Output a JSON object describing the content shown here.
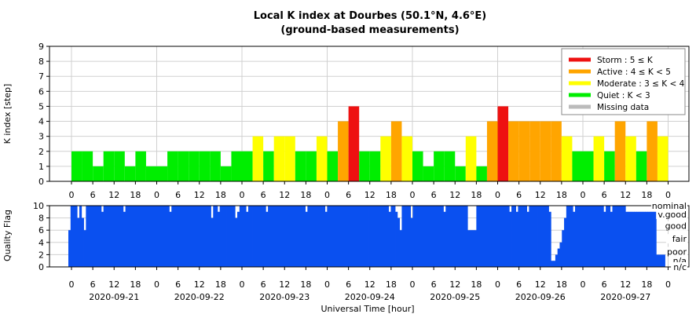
{
  "chart_data": [
    {
      "type": "bar",
      "title": "Local K index at Dourbes (50.1°N, 4.6°E)",
      "subtitle": "(ground-based measurements)",
      "ylabel": "K index [step]",
      "ylim": [
        0,
        9
      ],
      "yticks": [
        "0",
        "1",
        "2",
        "3",
        "4",
        "5",
        "6",
        "7",
        "8",
        "9"
      ],
      "x_unit": "3-hour interval (UT)",
      "x_tick_labels": [
        "0",
        "6",
        "12",
        "18",
        "0",
        "6",
        "12",
        "18",
        "0",
        "6",
        "12",
        "18",
        "0",
        "6",
        "12",
        "18",
        "0",
        "6",
        "12",
        "18",
        "0",
        "6",
        "12",
        "18",
        "0",
        "6",
        "12",
        "18",
        "0"
      ],
      "grid": true,
      "legend_position": "top-right",
      "legend": [
        {
          "label": "Storm : 5 ≤ K",
          "color": "#ee1111"
        },
        {
          "label": "Active : 4 ≤ K < 5",
          "color": "#ffa500"
        },
        {
          "label": "Moderate : 3 ≤ K < 4",
          "color": "#ffff00"
        },
        {
          "label": "Quiet : K < 3",
          "color": "#00ee00"
        },
        {
          "label": "Missing data",
          "color": "#bbbbbb"
        }
      ],
      "values": [
        2,
        2,
        1,
        2,
        2,
        1,
        2,
        1,
        1,
        2,
        2,
        2,
        2,
        2,
        1,
        2,
        2,
        3,
        2,
        3,
        3,
        2,
        2,
        3,
        2,
        4,
        5,
        2,
        2,
        3,
        4,
        3,
        2,
        1,
        2,
        2,
        1,
        3,
        1,
        4,
        5,
        4,
        4,
        4,
        4,
        4,
        3,
        2,
        2,
        3,
        2,
        4,
        3,
        2,
        4,
        3
      ]
    },
    {
      "type": "area",
      "ylabel": "Quality Flag",
      "ylim": [
        0,
        10
      ],
      "yticks": [
        "0",
        "2",
        "4",
        "6",
        "8",
        "10"
      ],
      "quality_labels": [
        "nominal",
        "v.good",
        "good",
        "fair",
        "poor",
        "n/a",
        "n/c"
      ],
      "x_tick_labels": [
        "0",
        "6",
        "12",
        "18",
        "0",
        "6",
        "12",
        "18",
        "0",
        "6",
        "12",
        "18",
        "0",
        "6",
        "12",
        "18",
        "0",
        "6",
        "12",
        "18",
        "0",
        "6",
        "12",
        "18",
        "0",
        "6",
        "12",
        "18",
        "0"
      ],
      "date_labels": [
        "2020-09-21",
        "2020-09-22",
        "2020-09-23",
        "2020-09-24",
        "2020-09-25",
        "2020-09-26",
        "2020-09-27"
      ],
      "xlabel": "Universal Time [hour]",
      "fill_color": "#0a50f0",
      "values": [
        6,
        10,
        10,
        10,
        8,
        10,
        8,
        6,
        10,
        10,
        10,
        10,
        10,
        10,
        10,
        9,
        10,
        10,
        10,
        10,
        10,
        10,
        10,
        10,
        10,
        9,
        10,
        10,
        10,
        10,
        10,
        10,
        10,
        10,
        10,
        10,
        10,
        10,
        10,
        10,
        10,
        10,
        10,
        10,
        10,
        10,
        9,
        10,
        10,
        10,
        10,
        10,
        10,
        10,
        10,
        10,
        10,
        10,
        10,
        10,
        10,
        10,
        10,
        10,
        10,
        8,
        10,
        10,
        9,
        10,
        10,
        10,
        10,
        10,
        10,
        10,
        8,
        9,
        10,
        10,
        10,
        9,
        10,
        10,
        10,
        10,
        10,
        10,
        10,
        10,
        9,
        10,
        10,
        10,
        10,
        10,
        10,
        10,
        10,
        10,
        10,
        10,
        10,
        10,
        10,
        10,
        10,
        10,
        9,
        10,
        10,
        10,
        10,
        10,
        10,
        10,
        10,
        9,
        10,
        10,
        10,
        10,
        10,
        10,
        10,
        10,
        10,
        10,
        10,
        10,
        10,
        10,
        10,
        10,
        10,
        10,
        10,
        10,
        10,
        10,
        10,
        10,
        10,
        10,
        10,
        10,
        9,
        10,
        10,
        9,
        8,
        6,
        10,
        10,
        10,
        10,
        8,
        10,
        10,
        10,
        10,
        10,
        10,
        10,
        10,
        10,
        10,
        10,
        10,
        10,
        10,
        9,
        10,
        10,
        10,
        10,
        10,
        10,
        10,
        10,
        10,
        10,
        6,
        6,
        6,
        6,
        10,
        10,
        10,
        10,
        10,
        10,
        10,
        10,
        10,
        10,
        10,
        10,
        10,
        10,
        10,
        9,
        10,
        10,
        9,
        10,
        10,
        10,
        10,
        9,
        10,
        10,
        10,
        10,
        10,
        10,
        10,
        10,
        10,
        9,
        1,
        1,
        2,
        3,
        4,
        6,
        8,
        10,
        10,
        10,
        9,
        10,
        10,
        10,
        10,
        10,
        10,
        10,
        10,
        10,
        10,
        10,
        10,
        10,
        9,
        10,
        10,
        9,
        10,
        10,
        10,
        10,
        10,
        10,
        9,
        9,
        9,
        9,
        9,
        9,
        9,
        9,
        9,
        9,
        9,
        9,
        9,
        9,
        2,
        2,
        2,
        2
      ]
    }
  ]
}
